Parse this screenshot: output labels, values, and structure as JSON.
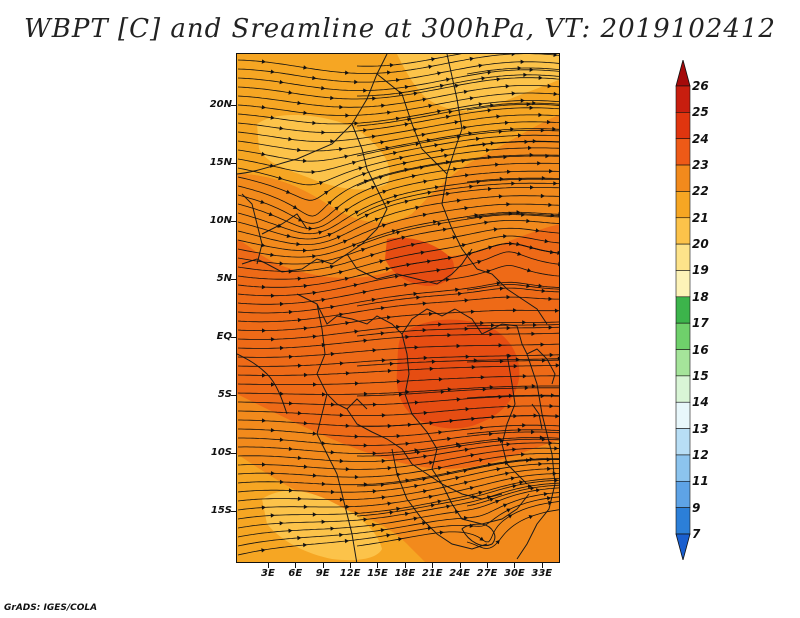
{
  "title": "WBPT [C] and Sreamline at 300hPa, VT: 2019102412",
  "credit": "GrADS: IGES/COLA",
  "map": {
    "lat_range": [
      -19.5,
      24.5
    ],
    "lon_range": [
      -0.5,
      35
    ],
    "y_ticks": [
      {
        "label": "20N",
        "lat": 20
      },
      {
        "label": "15N",
        "lat": 15
      },
      {
        "label": "10N",
        "lat": 10
      },
      {
        "label": "5N",
        "lat": 5
      },
      {
        "label": "EQ",
        "lat": 0
      },
      {
        "label": "5S",
        "lat": -5
      },
      {
        "label": "10S",
        "lat": -10
      },
      {
        "label": "15S",
        "lat": -15
      }
    ],
    "x_ticks": [
      {
        "label": "3E",
        "lon": 3
      },
      {
        "label": "6E",
        "lon": 6
      },
      {
        "label": "9E",
        "lon": 9
      },
      {
        "label": "12E",
        "lon": 12
      },
      {
        "label": "15E",
        "lon": 15
      },
      {
        "label": "18E",
        "lon": 18
      },
      {
        "label": "21E",
        "lon": 21
      },
      {
        "label": "24E",
        "lon": 24
      },
      {
        "label": "27E",
        "lon": 27
      },
      {
        "label": "30E",
        "lon": 30
      },
      {
        "label": "33E",
        "lon": 33
      }
    ],
    "field_colors": {
      "c20": "#fcc34a",
      "c21": "#f6a623",
      "c22": "#f28a1c",
      "c23": "#ee6a17",
      "c24": "#e64d12"
    }
  },
  "colorbar": {
    "levels": [
      "26",
      "25",
      "24",
      "23",
      "22",
      "21",
      "20",
      "19",
      "18",
      "17",
      "16",
      "15",
      "14",
      "13",
      "12",
      "11",
      "9",
      "7"
    ],
    "colors": [
      "#a50a0a",
      "#c81e0f",
      "#e0350f",
      "#ee5a17",
      "#f28a1c",
      "#f6a623",
      "#fcc34a",
      "#fde38a",
      "#fdf3b8",
      "#3cb44b",
      "#6fd06b",
      "#a5e49a",
      "#d9f5d6",
      "#e8f7fb",
      "#b8def5",
      "#8cc4ee",
      "#5ea3e6",
      "#2c7fd8",
      "#1a5fcf"
    ]
  }
}
